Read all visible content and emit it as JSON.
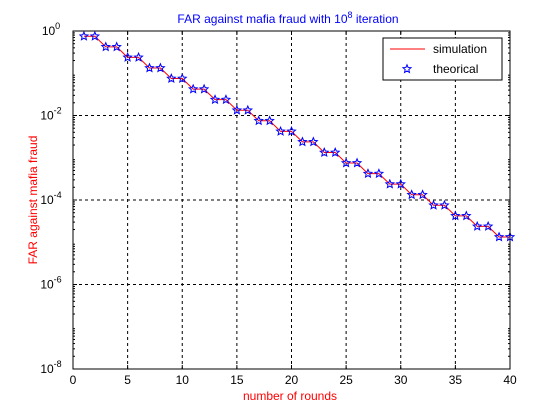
{
  "chart_data": {
    "type": "line",
    "title_main": "FAR against mafia fraud with 10",
    "title_sup": "8",
    "title_tail": " iteration",
    "xlabel": "number of rounds",
    "ylabel": "FAR against mafia fraud",
    "xlim": [
      0,
      40
    ],
    "ylim": [
      1e-08,
      1
    ],
    "yscale": "log",
    "xticks": [
      0,
      5,
      10,
      15,
      20,
      25,
      30,
      35,
      40
    ],
    "xtick_labels": [
      "0",
      "5",
      "10",
      "15",
      "20",
      "25",
      "30",
      "35",
      "40"
    ],
    "yticks": [
      {
        "value": 1e-08,
        "base": "10",
        "exp": "-8"
      },
      {
        "value": 1e-06,
        "base": "10",
        "exp": "-6"
      },
      {
        "value": 0.0001,
        "base": "10",
        "exp": "-4"
      },
      {
        "value": 0.01,
        "base": "10",
        "exp": "-2"
      },
      {
        "value": 1,
        "base": "10",
        "exp": "0"
      }
    ],
    "grid": true,
    "legend_position": "top-right",
    "x": [
      1,
      2,
      3,
      4,
      5,
      6,
      7,
      8,
      9,
      10,
      11,
      12,
      13,
      14,
      15,
      16,
      17,
      18,
      19,
      20,
      21,
      22,
      23,
      24,
      25,
      26,
      27,
      28,
      29,
      30,
      31,
      32,
      33,
      34,
      35,
      36,
      37,
      38,
      39,
      40
    ],
    "series": [
      {
        "name": "simulation",
        "style": "line",
        "color": "#ff0000",
        "values": [
          0.75,
          0.75,
          0.42,
          0.42,
          0.237,
          0.237,
          0.133,
          0.133,
          0.075,
          0.075,
          0.042,
          0.042,
          0.0237,
          0.0237,
          0.0133,
          0.0133,
          0.0075,
          0.0075,
          0.0042,
          0.0042,
          0.00237,
          0.00237,
          0.00133,
          0.00133,
          0.00075,
          0.00075,
          0.00042,
          0.00042,
          0.000237,
          0.000237,
          0.000133,
          0.000133,
          7.5e-05,
          7.5e-05,
          4.2e-05,
          4.2e-05,
          2.37e-05,
          2.37e-05,
          1.33e-05,
          1.33e-05
        ]
      },
      {
        "name": "theorical",
        "style": "marker",
        "color": "#0000ff",
        "values": [
          0.75,
          0.75,
          0.42,
          0.42,
          0.237,
          0.237,
          0.133,
          0.133,
          0.075,
          0.075,
          0.042,
          0.042,
          0.0237,
          0.0237,
          0.0133,
          0.0133,
          0.0075,
          0.0075,
          0.0042,
          0.0042,
          0.00237,
          0.00237,
          0.00133,
          0.00133,
          0.00075,
          0.00075,
          0.00042,
          0.00042,
          0.000237,
          0.000237,
          0.000133,
          0.000133,
          7.5e-05,
          7.5e-05,
          4.2e-05,
          4.2e-05,
          2.37e-05,
          2.37e-05,
          1.33e-05,
          1.33e-05
        ]
      }
    ]
  }
}
